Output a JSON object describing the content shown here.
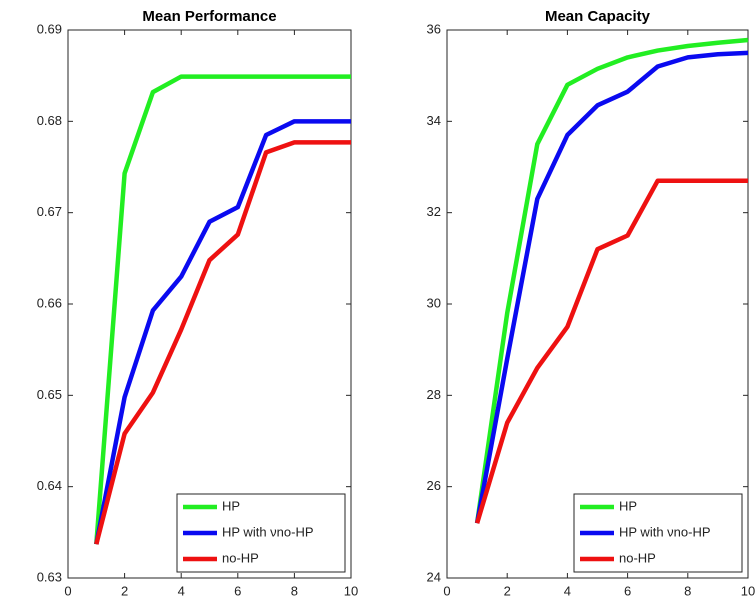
{
  "chart_data": [
    {
      "type": "line",
      "title": "Mean Performance",
      "x": [
        1,
        2,
        3,
        4,
        5,
        6,
        7,
        8,
        9,
        10
      ],
      "xlim": [
        0,
        10
      ],
      "xticks": [
        0,
        2,
        4,
        6,
        8,
        10
      ],
      "ylim": [
        0.63,
        0.69
      ],
      "yticks": [
        0.63,
        0.64,
        0.65,
        0.66,
        0.67,
        0.68,
        0.69
      ],
      "legend": "lower right",
      "series": [
        {
          "name": "HP",
          "color": "#22ee22",
          "values": [
            0.6337,
            0.6743,
            0.6832,
            0.6849,
            0.6849,
            0.6849,
            0.6849,
            0.6849,
            0.6849,
            0.6849
          ]
        },
        {
          "name": "HP with νno-HP",
          "color": "#0a0af0",
          "values": [
            0.6337,
            0.6498,
            0.6593,
            0.663,
            0.669,
            0.6706,
            0.6785,
            0.68,
            0.68,
            0.68
          ]
        },
        {
          "name": "no-HP",
          "color": "#ee1111",
          "values": [
            0.6337,
            0.6458,
            0.6503,
            0.6572,
            0.6648,
            0.6676,
            0.6766,
            0.6777,
            0.6777,
            0.6777
          ]
        }
      ]
    },
    {
      "type": "line",
      "title": "Mean Capacity",
      "x": [
        1,
        2,
        3,
        4,
        5,
        6,
        7,
        8,
        9,
        10
      ],
      "xlim": [
        0,
        10
      ],
      "xticks": [
        0,
        2,
        4,
        6,
        8,
        10
      ],
      "ylim": [
        24,
        36
      ],
      "yticks": [
        24,
        26,
        28,
        30,
        32,
        34,
        36
      ],
      "legend": "lower right",
      "series": [
        {
          "name": "HP",
          "color": "#22ee22",
          "values": [
            25.2,
            29.8,
            33.5,
            34.8,
            35.15,
            35.4,
            35.55,
            35.65,
            35.72,
            35.78
          ]
        },
        {
          "name": "HP with νno-HP",
          "color": "#0a0af0",
          "values": [
            25.2,
            28.8,
            32.3,
            33.7,
            34.35,
            34.65,
            35.2,
            35.4,
            35.47,
            35.5
          ]
        },
        {
          "name": "no-HP",
          "color": "#ee1111",
          "values": [
            25.2,
            27.4,
            28.6,
            29.5,
            31.2,
            31.5,
            32.7,
            32.7,
            32.7,
            32.7
          ]
        }
      ]
    }
  ]
}
